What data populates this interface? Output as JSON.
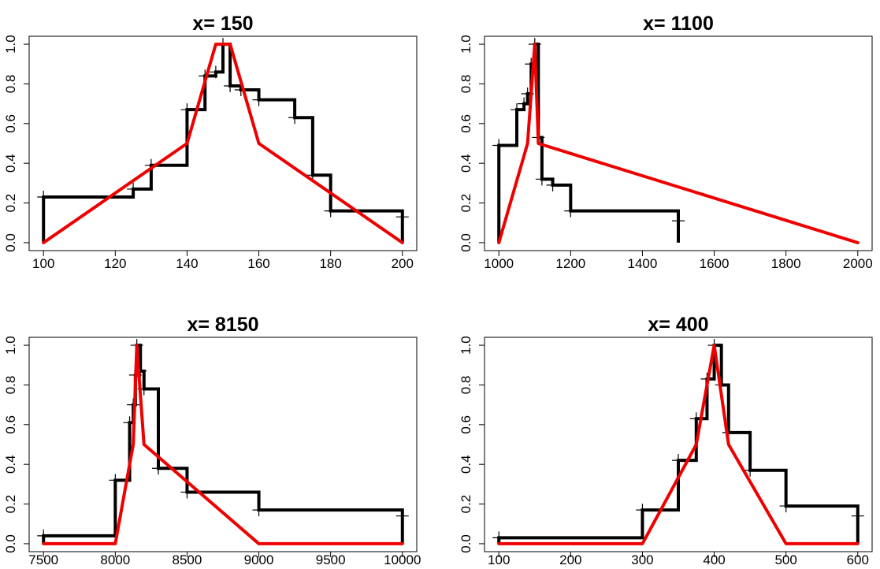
{
  "chart_data": [
    {
      "type": "line",
      "title": "x= 150",
      "xlim": [
        100,
        200
      ],
      "ylim": [
        0,
        1
      ],
      "x_ticks": [
        100,
        120,
        140,
        160,
        180,
        200
      ],
      "y_ticks": [
        0.0,
        0.2,
        0.4,
        0.6,
        0.8,
        1.0
      ],
      "x_tick_labels": [
        "100",
        "120",
        "140",
        "160",
        "180",
        "200"
      ],
      "y_tick_labels": [
        "0.0",
        "0.2",
        "0.4",
        "0.6",
        "0.8",
        "1.0"
      ],
      "step_line": {
        "color": "#000000",
        "x": [
          100,
          125,
          130,
          140,
          145,
          148,
          150,
          152,
          155,
          160,
          170,
          175,
          180,
          200
        ],
        "y": [
          0.23,
          0.27,
          0.39,
          0.67,
          0.84,
          0.86,
          1.0,
          0.79,
          0.77,
          0.72,
          0.63,
          0.34,
          0.16,
          0.13
        ],
        "start_y": 0.0,
        "end_y": 0.0
      },
      "marker_points": {
        "x": [
          100,
          125,
          130,
          140,
          145,
          148,
          150,
          152,
          155,
          160,
          170,
          175,
          180,
          200
        ],
        "y": [
          0.23,
          0.27,
          0.39,
          0.67,
          0.84,
          0.86,
          1.0,
          0.79,
          0.77,
          0.72,
          0.63,
          0.34,
          0.16,
          0.13
        ]
      },
      "membership_line": {
        "color": "#ee0000",
        "x": [
          100,
          140,
          148,
          152,
          160,
          200
        ],
        "y": [
          0.0,
          0.5,
          1.0,
          1.0,
          0.5,
          0.0
        ]
      }
    },
    {
      "type": "line",
      "title": "x= 1100",
      "xlim": [
        1000,
        2000
      ],
      "ylim": [
        0,
        1
      ],
      "x_ticks": [
        1000,
        1200,
        1400,
        1600,
        1800,
        2000
      ],
      "y_ticks": [
        0.0,
        0.2,
        0.4,
        0.6,
        0.8,
        1.0
      ],
      "x_tick_labels": [
        "1000",
        "1200",
        "1400",
        "1600",
        "1800",
        "2000"
      ],
      "y_tick_labels": [
        "0.0",
        "0.2",
        "0.4",
        "0.6",
        "0.8",
        "1.0"
      ],
      "step_line": {
        "color": "#000000",
        "x": [
          1000,
          1050,
          1070,
          1080,
          1090,
          1100,
          1110,
          1120,
          1150,
          1200,
          1500
        ],
        "y": [
          0.49,
          0.67,
          0.7,
          0.75,
          0.9,
          1.0,
          0.53,
          0.32,
          0.29,
          0.16,
          0.11
        ],
        "start_y": 0.0,
        "end_y": 0.0
      },
      "marker_points": {
        "x": [
          1000,
          1050,
          1070,
          1080,
          1090,
          1100,
          1110,
          1120,
          1150,
          1200,
          1500
        ],
        "y": [
          0.49,
          0.67,
          0.7,
          0.75,
          0.9,
          1.0,
          0.53,
          0.32,
          0.29,
          0.16,
          0.11
        ]
      },
      "membership_line": {
        "color": "#ee0000",
        "x": [
          1000,
          1080,
          1100,
          1110,
          2000
        ],
        "y": [
          0.0,
          0.5,
          1.0,
          0.5,
          0.0
        ]
      }
    },
    {
      "type": "line",
      "title": "x= 8150",
      "xlim": [
        7500,
        10000
      ],
      "ylim": [
        0,
        1
      ],
      "x_ticks": [
        7500,
        8000,
        8500,
        9000,
        9500,
        10000
      ],
      "y_ticks": [
        0.0,
        0.2,
        0.4,
        0.6,
        0.8,
        1.0
      ],
      "x_tick_labels": [
        "7500",
        "8000",
        "8500",
        "9000",
        "9500",
        "10000"
      ],
      "y_tick_labels": [
        "0.0",
        "0.2",
        "0.4",
        "0.6",
        "0.8",
        "1.0"
      ],
      "step_line": {
        "color": "#000000",
        "x": [
          7500,
          8000,
          8100,
          8125,
          8140,
          8150,
          8175,
          8200,
          8300,
          8500,
          9000,
          10000
        ],
        "y": [
          0.04,
          0.32,
          0.61,
          0.7,
          0.85,
          1.0,
          0.87,
          0.78,
          0.38,
          0.26,
          0.17,
          0.14
        ],
        "start_y": 0.0,
        "end_y": 0.0
      },
      "marker_points": {
        "x": [
          7500,
          8000,
          8100,
          8125,
          8140,
          8150,
          8175,
          8200,
          8300,
          8500,
          9000,
          10000
        ],
        "y": [
          0.04,
          0.32,
          0.61,
          0.7,
          0.85,
          1.0,
          0.87,
          0.78,
          0.38,
          0.26,
          0.17,
          0.14
        ]
      },
      "membership_line": {
        "color": "#ee0000",
        "x": [
          7500,
          8000,
          8125,
          8150,
          8200,
          9000,
          10000
        ],
        "y": [
          0.0,
          0.0,
          0.5,
          1.0,
          0.5,
          0.0,
          0.0
        ]
      }
    },
    {
      "type": "line",
      "title": "x= 400",
      "xlim": [
        100,
        600
      ],
      "ylim": [
        0,
        1
      ],
      "x_ticks": [
        100,
        200,
        300,
        400,
        500,
        600
      ],
      "y_ticks": [
        0.0,
        0.2,
        0.4,
        0.6,
        0.8,
        1.0
      ],
      "x_tick_labels": [
        "100",
        "200",
        "300",
        "400",
        "500",
        "600"
      ],
      "y_tick_labels": [
        "0.0",
        "0.2",
        "0.4",
        "0.6",
        "0.8",
        "1.0"
      ],
      "step_line": {
        "color": "#000000",
        "x": [
          100,
          300,
          350,
          375,
          390,
          400,
          410,
          420,
          450,
          500,
          600
        ],
        "y": [
          0.03,
          0.17,
          0.42,
          0.63,
          0.83,
          1.0,
          0.8,
          0.56,
          0.37,
          0.19,
          0.14
        ],
        "start_y": 0.0,
        "end_y": 0.0
      },
      "marker_points": {
        "x": [
          100,
          300,
          350,
          375,
          390,
          400,
          410,
          420,
          450,
          500,
          600
        ],
        "y": [
          0.03,
          0.17,
          0.42,
          0.63,
          0.83,
          1.0,
          0.8,
          0.56,
          0.37,
          0.19,
          0.14
        ]
      },
      "membership_line": {
        "color": "#ee0000",
        "x": [
          100,
          300,
          375,
          400,
          420,
          500,
          600
        ],
        "y": [
          0.0,
          0.0,
          0.5,
          1.0,
          0.5,
          0.0,
          0.0
        ]
      }
    }
  ]
}
